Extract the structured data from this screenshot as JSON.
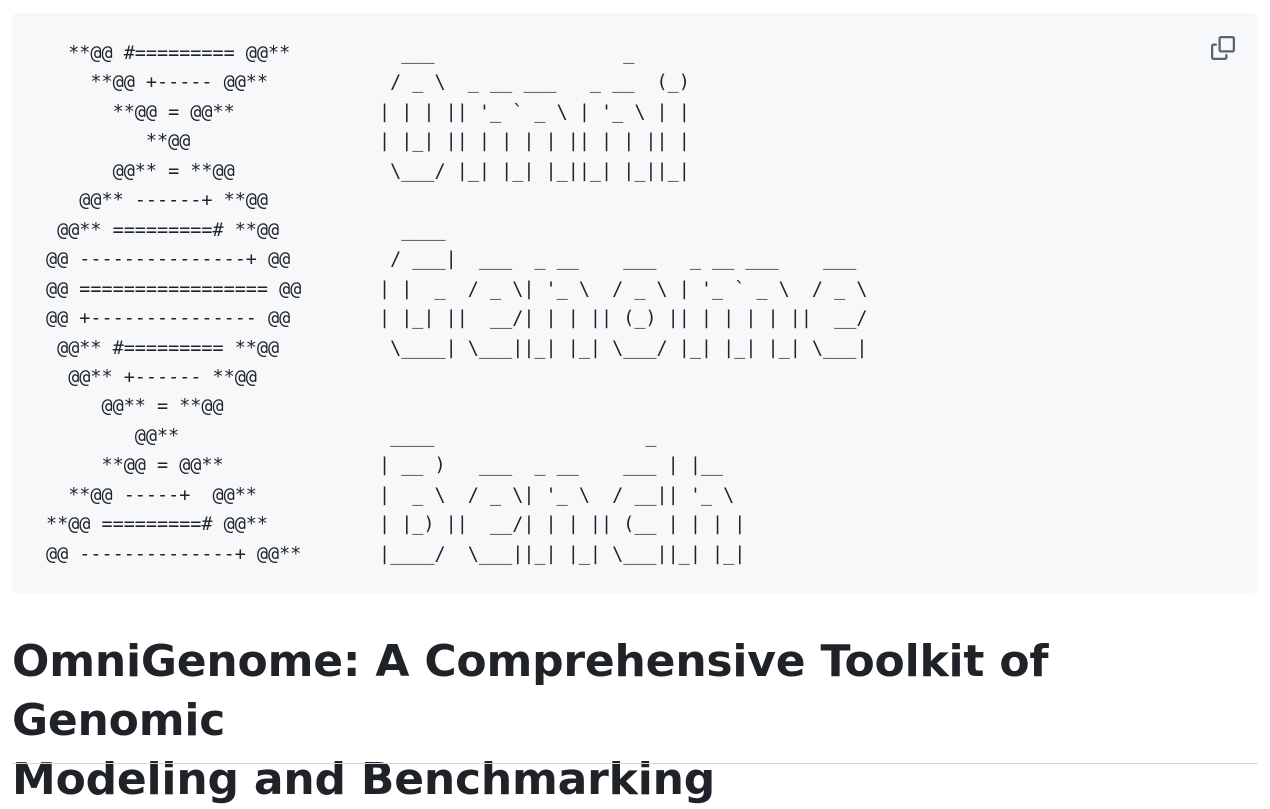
{
  "code_block": {
    "lines": [
      "  **@@ #========= @@**          ___                 _",
      "    **@@ +----- @@**           / _ \\  _ __ ___   _ __  (_)",
      "      **@@ = @@**             | | | || '_ ` _ \\ | '_ \\ | |",
      "         **@@                 | |_| || | | | | || | | || |",
      "      @@** = **@@              \\___/ |_| |_| |_||_| |_||_|",
      "   @@** ------+ **@@",
      " @@** =========# **@@           ____",
      "@@ ---------------+ @@         / ___|  ___  _ __    ___   _ __ ___    ___",
      "@@ ================= @@       | |  _  / _ \\| '_ \\  / _ \\ | '_ ` _ \\  / _ \\",
      "@@ +--------------- @@        | |_| ||  __/| | | || (_) || | | | | ||  __/",
      " @@** #========= **@@          \\____| \\___||_| |_| \\___/ |_| |_| |_| \\___|",
      "  @@** +------ **@@",
      "     @@** = **@@",
      "        @@**                   ____                   _",
      "     **@@ = @@**              | __ )   ___  _ __    ___ | |__",
      "  **@@ -----+  @@**           |  _ \\  / _ \\| '_ \\  / __|| '_ \\",
      "**@@ =========# @@**          | |_) ||  __/| | | || (__ | | | |",
      "@@ --------------+ @@**       |____/  \\___||_| |_| \\___||_| |_|"
    ],
    "copy_icon": "copy-icon"
  },
  "title": {
    "line1": "OmniGenome: A Comprehensive Toolkit of Genomic",
    "line2": "Modeling and Benchmarking"
  },
  "colors": {
    "code_background": "#f6f8fa",
    "text": "#1f2328",
    "icon": "#59636e",
    "divider": "#d1d9e0"
  }
}
